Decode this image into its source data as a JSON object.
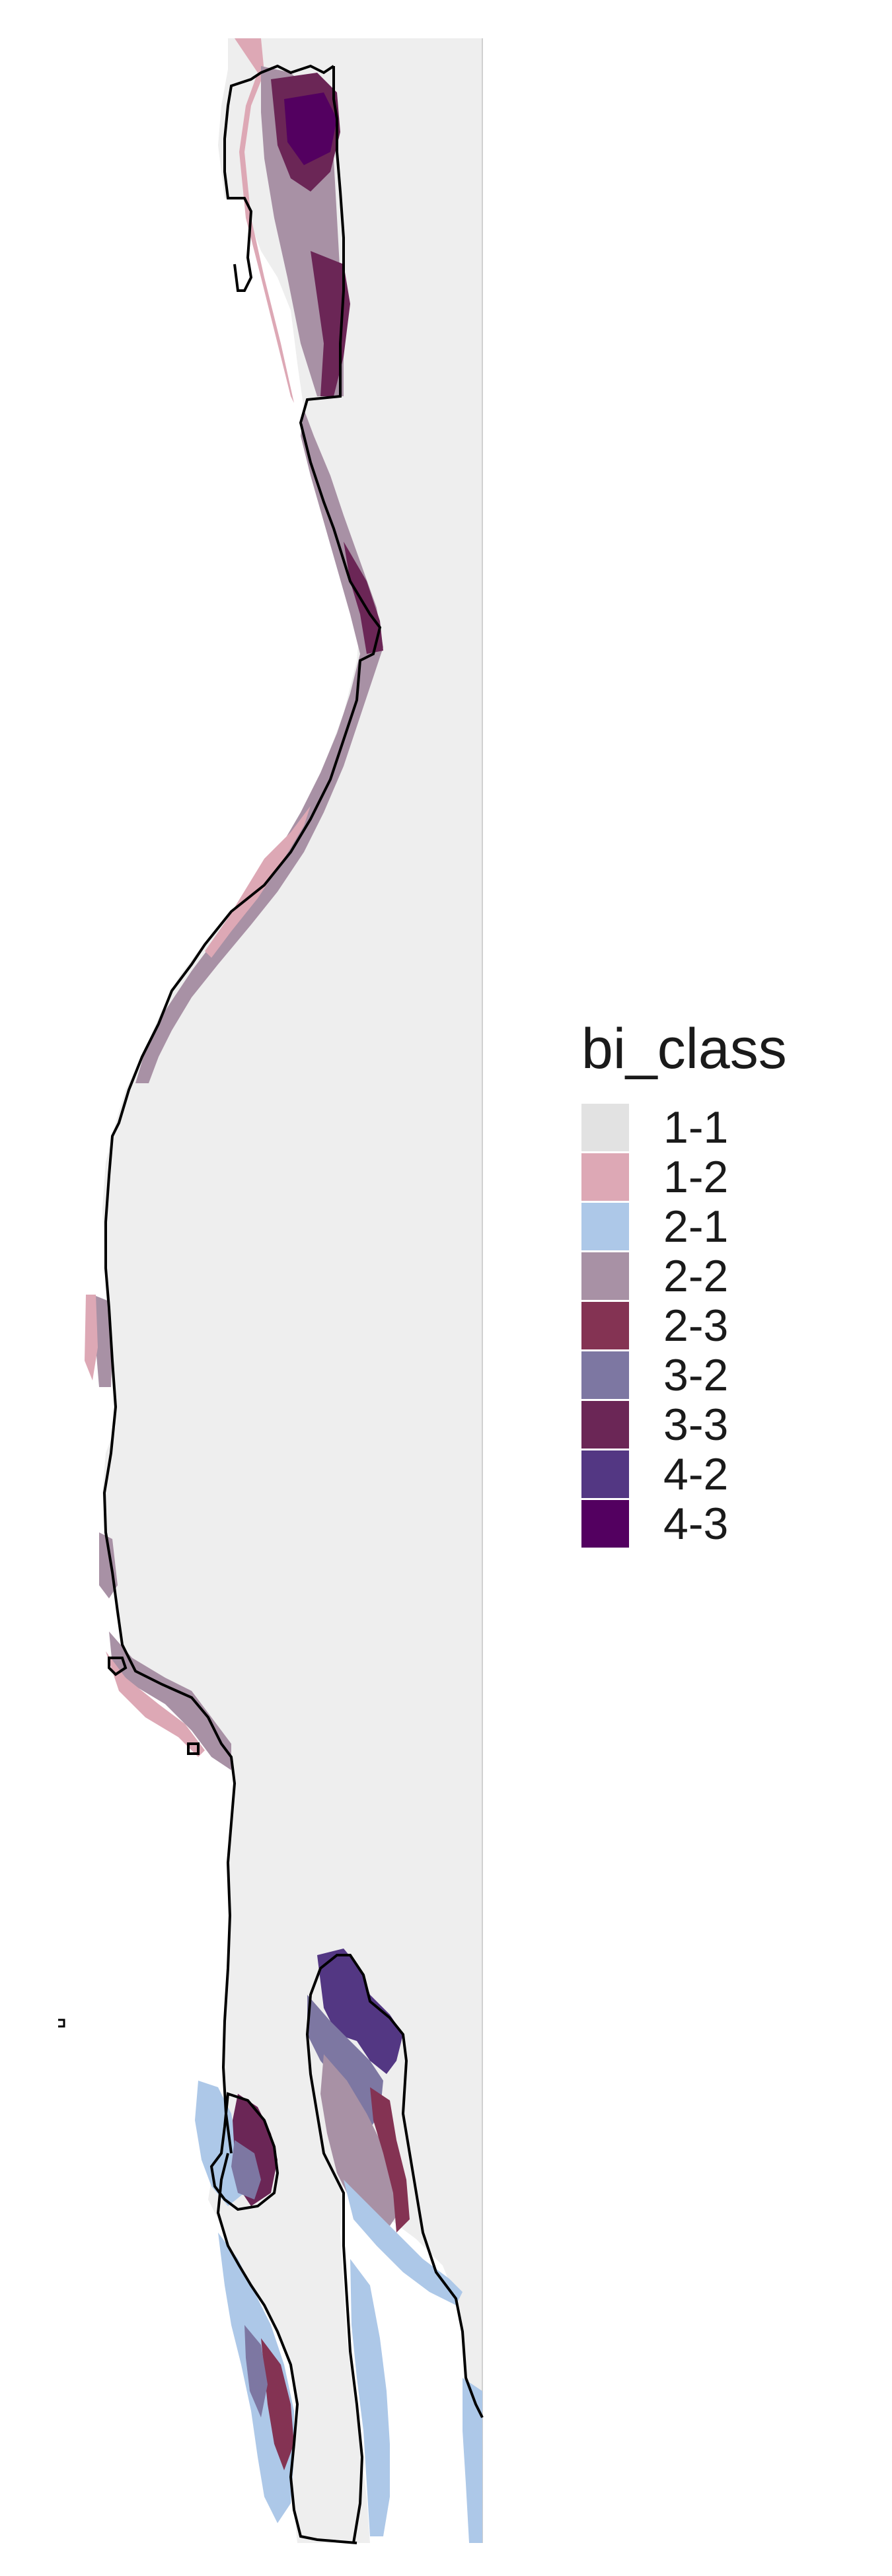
{
  "legend": {
    "title": "bi_class",
    "items": [
      {
        "label": "1-1",
        "color": "#e2e2e2"
      },
      {
        "label": "1-2",
        "color": "#dda8b5"
      },
      {
        "label": "2-1",
        "color": "#adc8e8"
      },
      {
        "label": "2-2",
        "color": "#a891a5"
      },
      {
        "label": "2-3",
        "color": "#843353"
      },
      {
        "label": "3-2",
        "color": "#7d77a2"
      },
      {
        "label": "3-3",
        "color": "#6b2656"
      },
      {
        "label": "4-2",
        "color": "#533783"
      },
      {
        "label": "4-3",
        "color": "#530060"
      }
    ]
  },
  "map": {
    "land_color": "#eeeeee",
    "water_color": "#ffffff",
    "outline_color": "#000000"
  }
}
